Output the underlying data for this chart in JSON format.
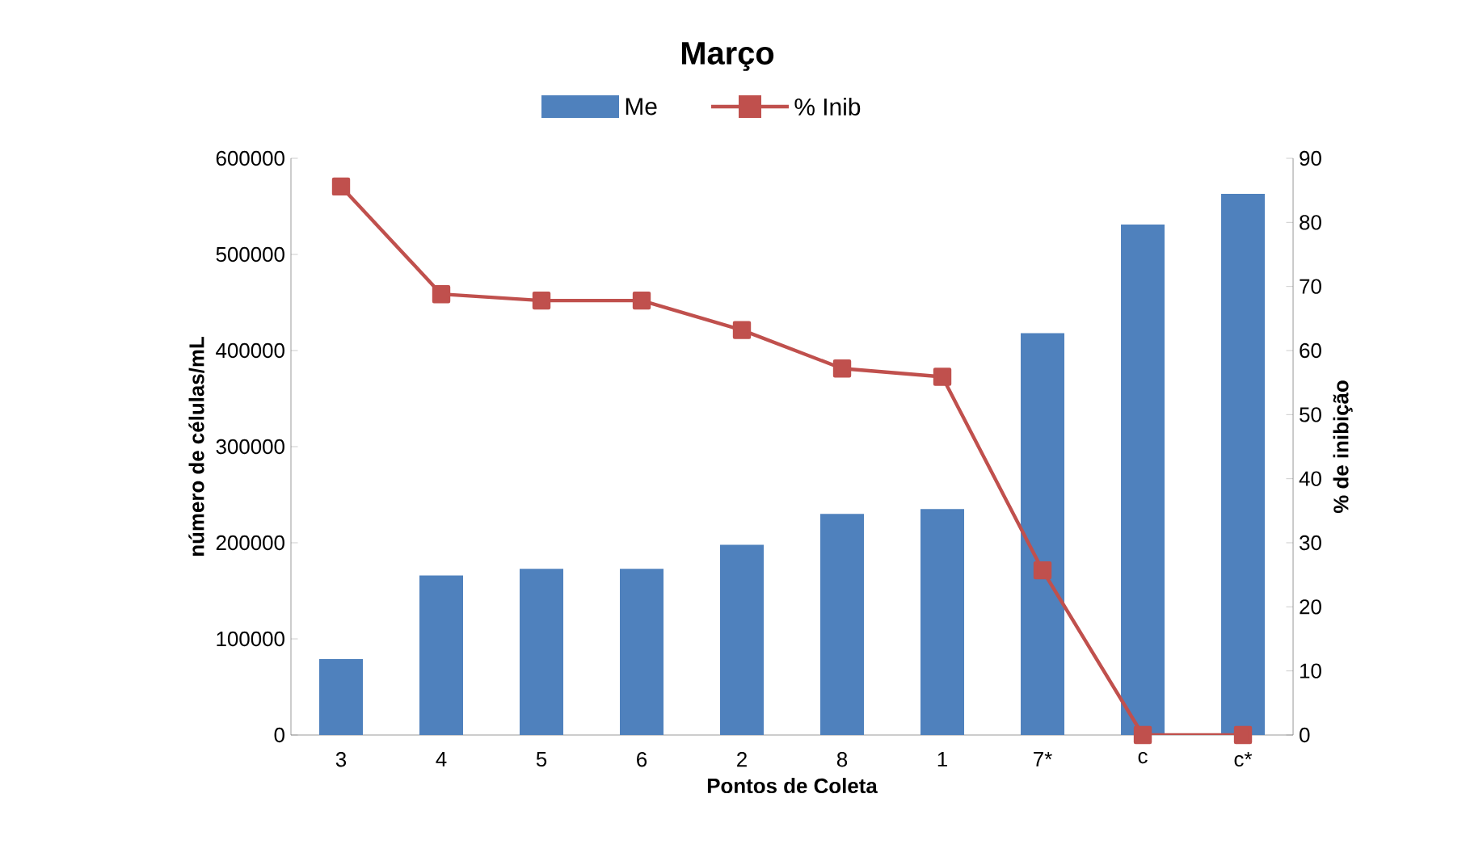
{
  "chart_data": {
    "type": "bar",
    "title": "Março",
    "xlabel": "Pontos de Coleta",
    "ylabel": "número de células/mL",
    "y2label": "% de inibição",
    "categories": [
      "3",
      "4",
      "5",
      "6",
      "2",
      "8",
      "1",
      "7*",
      "c",
      "c*"
    ],
    "series": [
      {
        "name": "Me",
        "color": "#4f81bd",
        "values": [
          79000,
          166000,
          173000,
          173000,
          198000,
          230000,
          235000,
          418000,
          531000,
          563000
        ]
      },
      {
        "name": "% Inib",
        "type": "line",
        "axis": "y2",
        "color": "#c0504d",
        "marker": "square",
        "values": [
          85.6,
          68.8,
          67.8,
          67.8,
          63.2,
          57.2,
          55.9,
          25.7,
          0,
          0
        ]
      }
    ],
    "ylim": [
      0,
      600000
    ],
    "yticks": [
      0,
      100000,
      200000,
      300000,
      400000,
      500000,
      600000
    ],
    "y2lim": [
      0,
      90
    ],
    "y2ticks": [
      0,
      10,
      20,
      30,
      40,
      50,
      60,
      70,
      80,
      90
    ],
    "legend": "top"
  }
}
